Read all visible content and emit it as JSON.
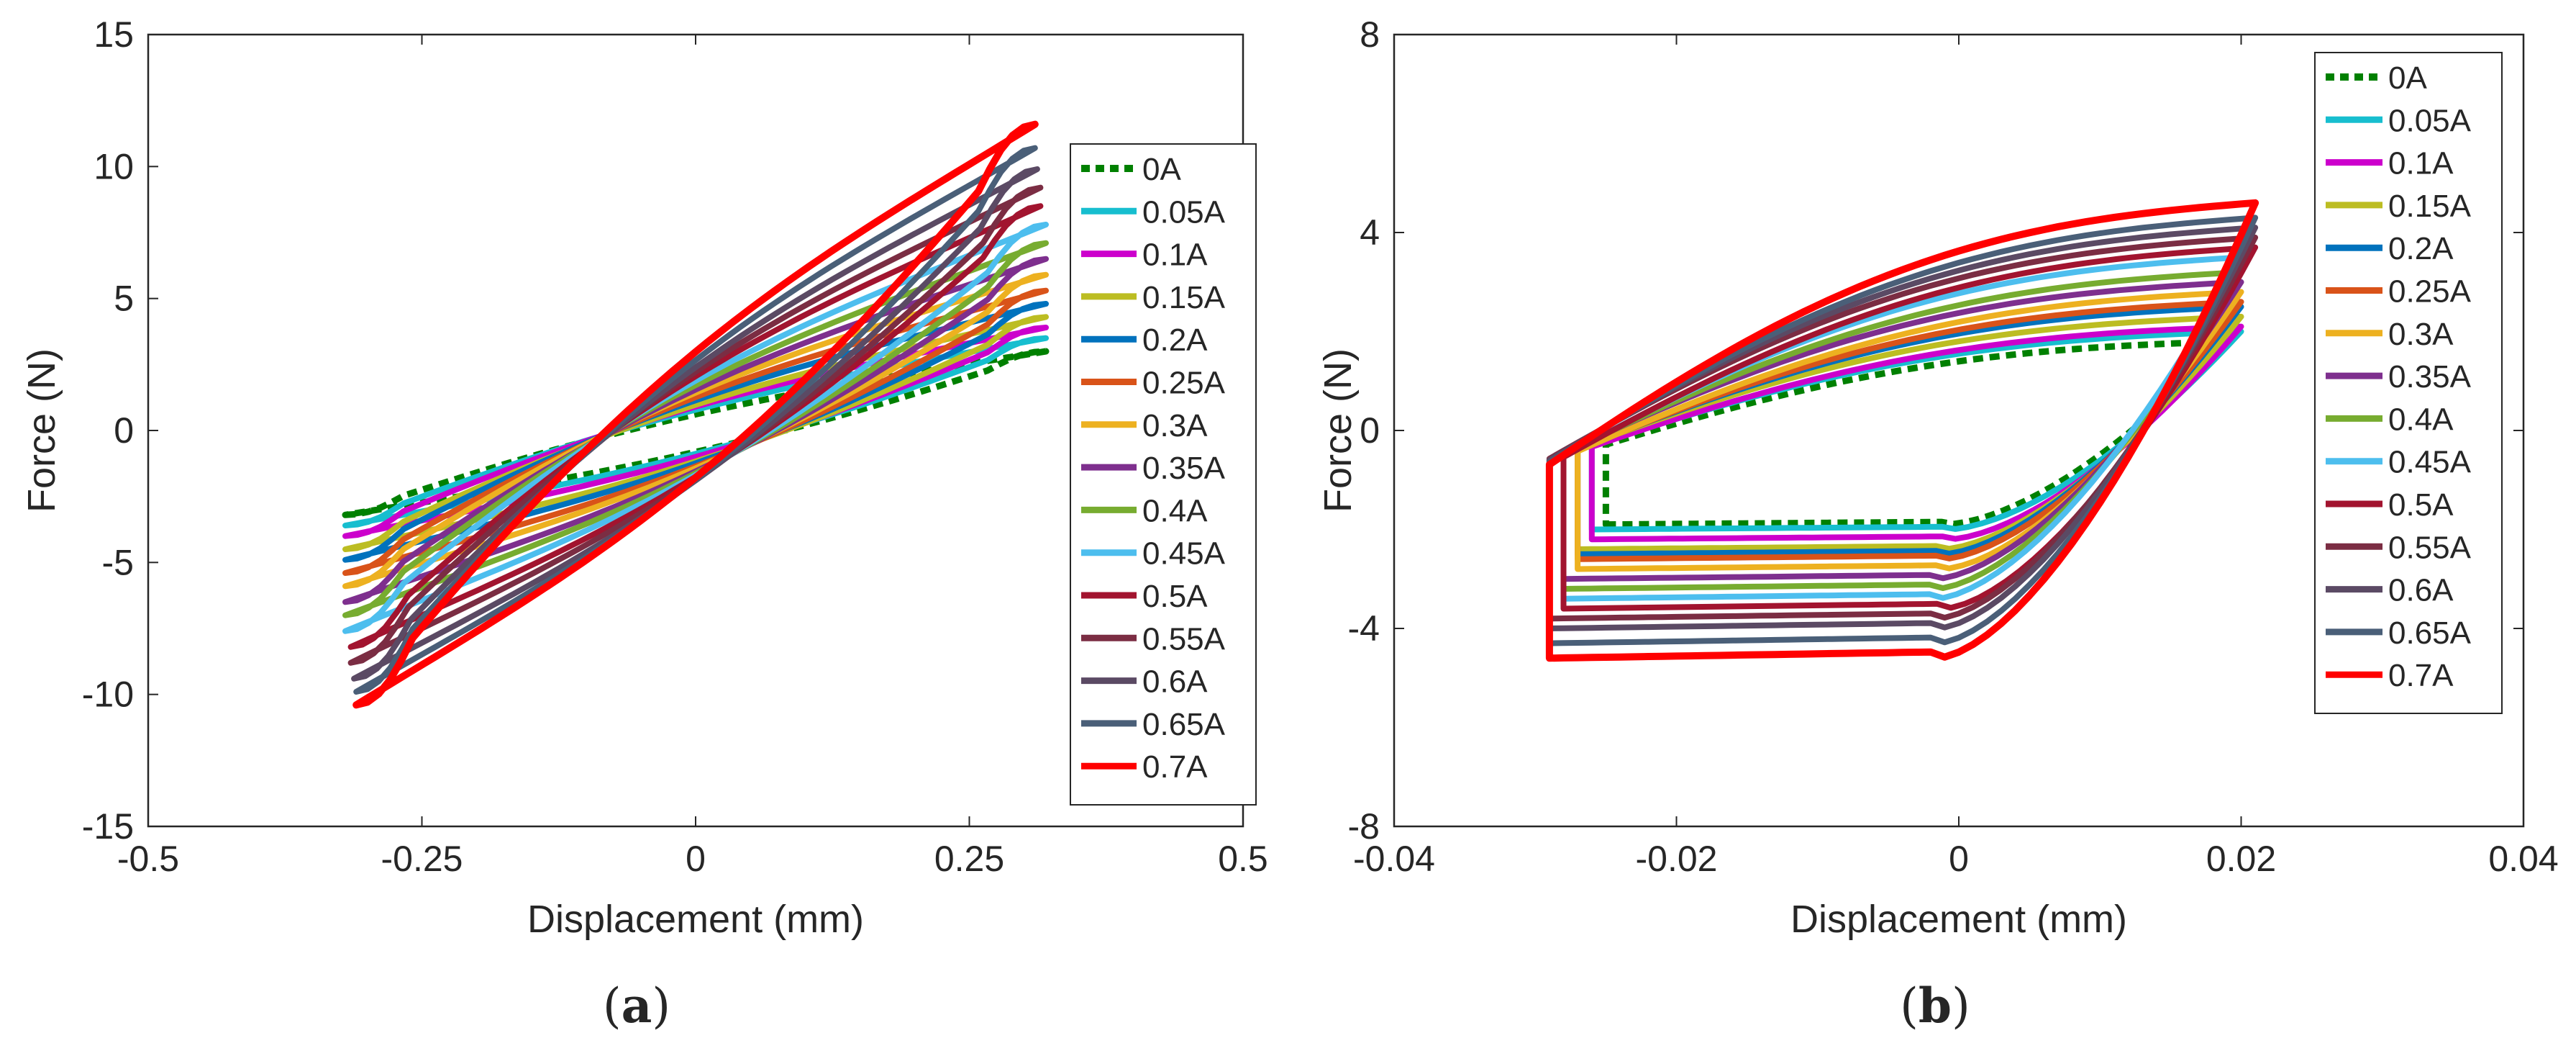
{
  "chart_data": [
    {
      "id": "a",
      "type": "line",
      "caption_prefix": "(",
      "caption_letter": "a",
      "caption_suffix": ")",
      "xlabel": "Displacement (mm)",
      "ylabel": "Force (N)",
      "xlim": [
        -0.5,
        0.5
      ],
      "ylim": [
        -15,
        15
      ],
      "xticks": [
        -0.5,
        -0.25,
        0,
        0.25,
        0.5
      ],
      "xtick_labels": [
        "-0.5",
        "-0.25",
        "0",
        "0.25",
        "0.5"
      ],
      "yticks": [
        -15,
        -10,
        -5,
        0,
        5,
        10,
        15
      ],
      "ytick_labels": [
        "-15",
        "-10",
        "-5",
        "0",
        "5",
        "10",
        "15"
      ],
      "grid": false,
      "legend_position": "right",
      "series": [
        {
          "name": "0A",
          "color": "#008000",
          "dashed": true,
          "dx": 0.32,
          "fmax": 3.0,
          "fmin": -3.2,
          "w": 0.06
        },
        {
          "name": "0.05A",
          "color": "#17BECF",
          "dx": 0.32,
          "fmax": 3.5,
          "fmin": -3.6,
          "w": 0.07
        },
        {
          "name": "0.1A",
          "color": "#CC00CC",
          "dx": 0.32,
          "fmax": 3.9,
          "fmin": -4.0,
          "w": 0.08
        },
        {
          "name": "0.15A",
          "color": "#BCBD22",
          "dx": 0.32,
          "fmax": 4.3,
          "fmin": -4.5,
          "w": 0.09
        },
        {
          "name": "0.2A",
          "color": "#0072BD",
          "dx": 0.32,
          "fmax": 4.8,
          "fmin": -4.9,
          "w": 0.1
        },
        {
          "name": "0.25A",
          "color": "#D95319",
          "dx": 0.32,
          "fmax": 5.3,
          "fmin": -5.4,
          "w": 0.11
        },
        {
          "name": "0.3A",
          "color": "#EDB120",
          "dx": 0.32,
          "fmax": 5.9,
          "fmin": -5.9,
          "w": 0.12
        },
        {
          "name": "0.35A",
          "color": "#7E2F8E",
          "dx": 0.32,
          "fmax": 6.5,
          "fmin": -6.5,
          "w": 0.13
        },
        {
          "name": "0.4A",
          "color": "#77AC30",
          "dx": 0.32,
          "fmax": 7.1,
          "fmin": -7.0,
          "w": 0.14
        },
        {
          "name": "0.45A",
          "color": "#4DBEEE",
          "dx": 0.32,
          "fmax": 7.8,
          "fmin": -7.6,
          "w": 0.15
        },
        {
          "name": "0.5A",
          "color": "#A2142F",
          "dx": 0.315,
          "fmax": 8.5,
          "fmin": -8.2,
          "w": 0.16
        },
        {
          "name": "0.55A",
          "color": "#7B2D43",
          "dx": 0.315,
          "fmax": 9.2,
          "fmin": -8.8,
          "w": 0.17
        },
        {
          "name": "0.6A",
          "color": "#5B4A64",
          "dx": 0.312,
          "fmax": 9.9,
          "fmin": -9.4,
          "w": 0.18
        },
        {
          "name": "0.65A",
          "color": "#4A5F78",
          "dx": 0.31,
          "fmax": 10.7,
          "fmin": -9.9,
          "w": 0.19
        },
        {
          "name": "0.7A",
          "color": "#FF0000",
          "dx": 0.31,
          "fmax": 11.6,
          "fmin": -10.4,
          "w": 0.2
        }
      ]
    },
    {
      "id": "b",
      "type": "line",
      "caption_prefix": "(",
      "caption_letter": "b",
      "caption_suffix": ")",
      "xlabel": "Displacement (mm)",
      "ylabel": "Force (N)",
      "xlim": [
        -0.04,
        0.04
      ],
      "ylim": [
        -8,
        8
      ],
      "xticks": [
        -0.04,
        -0.02,
        0,
        0.02,
        0.04
      ],
      "xtick_labels": [
        "-0.04",
        "-0.02",
        "0",
        "0.02",
        "0.04"
      ],
      "yticks": [
        -8,
        -4,
        0,
        4,
        8
      ],
      "ytick_labels": [
        "-8",
        "-4",
        "0",
        "4",
        "8"
      ],
      "grid": false,
      "legend_position": "top-right",
      "series": [
        {
          "name": "0A",
          "color": "#008000",
          "dashed": true,
          "xmin": -0.025,
          "xmax": 0.019,
          "top": 1.8,
          "bot": -1.9
        },
        {
          "name": "0.05A",
          "color": "#17BECF",
          "xmin": -0.026,
          "xmax": 0.02,
          "top": 2.0,
          "bot": -2.0
        },
        {
          "name": "0.1A",
          "color": "#CC00CC",
          "xmin": -0.026,
          "xmax": 0.02,
          "top": 2.1,
          "bot": -2.2
        },
        {
          "name": "0.15A",
          "color": "#BCBD22",
          "xmin": -0.027,
          "xmax": 0.02,
          "top": 2.3,
          "bot": -2.4
        },
        {
          "name": "0.2A",
          "color": "#0072BD",
          "xmin": -0.027,
          "xmax": 0.02,
          "top": 2.5,
          "bot": -2.5
        },
        {
          "name": "0.25A",
          "color": "#D95319",
          "xmin": -0.027,
          "xmax": 0.02,
          "top": 2.6,
          "bot": -2.6
        },
        {
          "name": "0.3A",
          "color": "#EDB120",
          "xmin": -0.027,
          "xmax": 0.02,
          "top": 2.8,
          "bot": -2.8
        },
        {
          "name": "0.35A",
          "color": "#7E2F8E",
          "xmin": -0.028,
          "xmax": 0.02,
          "top": 3.0,
          "bot": -3.0
        },
        {
          "name": "0.4A",
          "color": "#77AC30",
          "xmin": -0.028,
          "xmax": 0.02,
          "top": 3.2,
          "bot": -3.2
        },
        {
          "name": "0.45A",
          "color": "#4DBEEE",
          "xmin": -0.028,
          "xmax": 0.02,
          "top": 3.5,
          "bot": -3.4
        },
        {
          "name": "0.5A",
          "color": "#A2142F",
          "xmin": -0.028,
          "xmax": 0.021,
          "top": 3.7,
          "bot": -3.6
        },
        {
          "name": "0.55A",
          "color": "#7B2D43",
          "xmin": -0.029,
          "xmax": 0.021,
          "top": 3.9,
          "bot": -3.8
        },
        {
          "name": "0.6A",
          "color": "#5B4A64",
          "xmin": -0.029,
          "xmax": 0.021,
          "top": 4.1,
          "bot": -4.0
        },
        {
          "name": "0.65A",
          "color": "#4A5F78",
          "xmin": -0.029,
          "xmax": 0.021,
          "top": 4.3,
          "bot": -4.3
        },
        {
          "name": "0.7A",
          "color": "#FF0000",
          "xmin": -0.029,
          "xmax": 0.021,
          "top": 4.6,
          "bot": -4.6
        }
      ]
    }
  ]
}
